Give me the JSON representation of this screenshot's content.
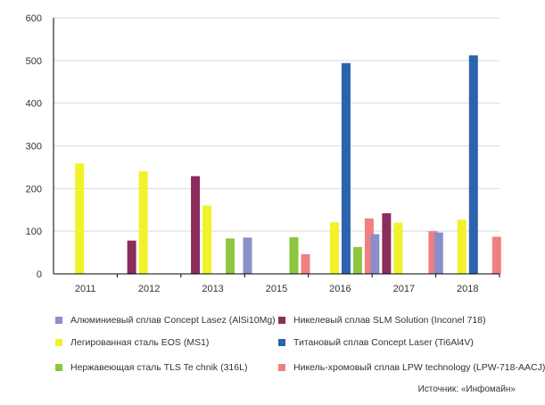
{
  "chart_data": {
    "type": "bar",
    "categories": [
      "2011",
      "2012",
      "2013",
      "2015",
      "2016",
      "2017",
      "2018"
    ],
    "ylim": [
      0,
      600
    ],
    "yticks": [
      0,
      100,
      200,
      300,
      400,
      500,
      600
    ],
    "grid": "horizontal",
    "legend_position": "bottom",
    "series": [
      {
        "name": "Алюминиевый сплав Concept Lasez (AlSi10Mg)",
        "color": "#8b8fc9",
        "values": [
          null,
          null,
          null,
          85,
          null,
          93,
          97
        ]
      },
      {
        "name": "Никелевый сплав SLM Solution (Inconel 718)",
        "color": "#8c2c5c",
        "values": [
          null,
          78,
          229,
          null,
          null,
          142,
          null
        ]
      },
      {
        "name": "Легированная сталь EOS (MS1)",
        "color": "#f2f22a",
        "values": [
          259,
          240,
          160,
          null,
          121,
          120,
          127
        ]
      },
      {
        "name": "Титановый сплав Concept Laser (Ti6Al4V)",
        "color": "#2b63ad",
        "values": [
          null,
          null,
          null,
          null,
          494,
          null,
          512
        ]
      },
      {
        "name": "Нержавеющая сталь TLS Te chnik (316L)",
        "color": "#8dc63f",
        "values": [
          null,
          null,
          83,
          86,
          63,
          null,
          null
        ]
      },
      {
        "name": "Никель-хромовый сплав LPW technology (LPW-718-AACJ)",
        "color": "#f08080",
        "values": [
          null,
          null,
          null,
          46,
          130,
          100,
          87
        ]
      }
    ]
  },
  "source": "Источник: «Инфомайн»"
}
